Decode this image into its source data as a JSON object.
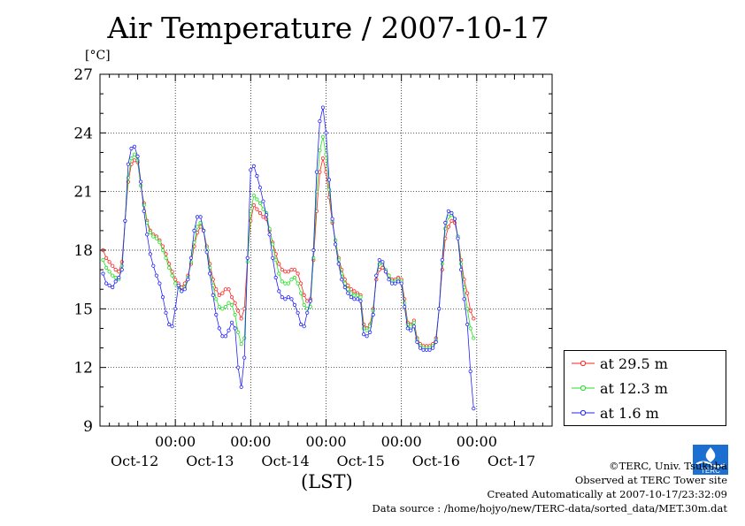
{
  "header": {
    "title": "Air Temperature / 2007-10-17",
    "unit": "[°C]"
  },
  "legend": {
    "items": [
      {
        "label": "at 29.5 m",
        "color": "#ff2020"
      },
      {
        "label": "at 12.3 m",
        "color": "#20e020"
      },
      {
        "label": "at 1.6 m",
        "color": "#2020ff"
      }
    ]
  },
  "credits": {
    "copyright": "©TERC, Univ. Tsukuba",
    "observed": "Observed at TERC Tower site",
    "created": "Created Automatically at 2007-10-17/23:32:09",
    "source": "Data source : /home/hojyo/new/TERC-data/sorted_data/MET.30m.dat"
  },
  "logo": {
    "text": "TERC"
  },
  "chart_data": {
    "type": "line",
    "title": "Air Temperature / 2007-10-17",
    "xlabel": "(LST)",
    "ylabel": "[°C]",
    "ylim": [
      9,
      27
    ],
    "yticks": [
      9,
      12,
      15,
      18,
      21,
      24,
      27
    ],
    "xlim": [
      0,
      144
    ],
    "xticks": [
      {
        "x": 24,
        "time": "00:00",
        "day": "Oct-12"
      },
      {
        "x": 48,
        "time": "00:00",
        "day": "Oct-13"
      },
      {
        "x": 72,
        "time": "00:00",
        "day": "Oct-14"
      },
      {
        "x": 96,
        "time": "00:00",
        "day": "Oct-15"
      },
      {
        "x": 120,
        "time": "00:00",
        "day": "Oct-16"
      },
      {
        "x": 144,
        "time": "",
        "day": "Oct-17"
      }
    ],
    "grid": true,
    "legend_position": "right",
    "x_unit": "hour",
    "x_step": 1,
    "series": [
      {
        "name": "at 29.5 m",
        "color": "#ff2020",
        "values": [
          18.0,
          17.6,
          17.4,
          17.2,
          17.0,
          16.9,
          17.4,
          19.5,
          21.5,
          22.4,
          22.6,
          22.5,
          21.3,
          20.4,
          19.5,
          19.0,
          18.8,
          18.7,
          18.5,
          18.2,
          17.8,
          17.3,
          16.9,
          16.5,
          16.3,
          16.1,
          16.3,
          16.7,
          17.3,
          18.2,
          18.9,
          19.2,
          19.0,
          18.2,
          17.3,
          16.5,
          16.0,
          15.7,
          15.8,
          16.0,
          16.0,
          15.6,
          15.3,
          14.9,
          14.5,
          15.0,
          17.6,
          19.5,
          20.3,
          20.1,
          19.9,
          19.7,
          19.6,
          19.0,
          18.4,
          17.8,
          17.3,
          17.0,
          16.9,
          16.9,
          17.0,
          17.0,
          16.8,
          16.3,
          15.7,
          15.4,
          15.5,
          17.5,
          20.0,
          22.0,
          22.7,
          22.0,
          20.7,
          19.4,
          18.5,
          17.6,
          17.0,
          16.5,
          16.2,
          16.0,
          15.9,
          15.8,
          15.7,
          14.2,
          14.0,
          14.2,
          15.0,
          16.5,
          17.0,
          17.1,
          16.9,
          16.7,
          16.5,
          16.5,
          16.6,
          16.5,
          15.5,
          14.3,
          14.2,
          14.4,
          13.5,
          13.2,
          13.1,
          13.1,
          13.1,
          13.2,
          13.5,
          15.0,
          17.0,
          18.6,
          19.2,
          19.5,
          19.4,
          18.7,
          17.5,
          16.5,
          15.8,
          14.9,
          14.5
        ]
      },
      {
        "name": "at 12.3 m",
        "color": "#20e020",
        "values": [
          17.5,
          17.1,
          16.9,
          16.7,
          16.6,
          16.5,
          17.2,
          19.5,
          21.7,
          22.7,
          22.9,
          22.6,
          21.3,
          20.3,
          19.4,
          18.9,
          18.7,
          18.6,
          18.4,
          18.0,
          17.6,
          17.1,
          16.7,
          16.3,
          16.1,
          15.9,
          16.1,
          16.6,
          17.4,
          18.4,
          19.2,
          19.4,
          19.0,
          18.1,
          17.1,
          16.2,
          15.5,
          15.1,
          15.0,
          15.1,
          15.3,
          15.2,
          14.7,
          13.8,
          13.2,
          13.5,
          17.4,
          20.0,
          20.8,
          20.6,
          20.4,
          20.1,
          19.9,
          19.1,
          18.3,
          17.5,
          16.8,
          16.4,
          16.3,
          16.3,
          16.5,
          16.6,
          16.3,
          15.8,
          15.2,
          15.0,
          15.1,
          17.6,
          21.0,
          23.1,
          23.8,
          22.9,
          21.1,
          19.5,
          18.5,
          17.5,
          16.8,
          16.3,
          16.0,
          15.8,
          15.7,
          15.7,
          15.6,
          14.0,
          13.9,
          14.1,
          14.9,
          16.7,
          17.3,
          17.3,
          17.0,
          16.7,
          16.4,
          16.4,
          16.5,
          16.4,
          15.3,
          14.2,
          14.1,
          14.3,
          13.4,
          13.1,
          13.0,
          13.0,
          13.0,
          13.1,
          13.4,
          15.0,
          17.3,
          19.1,
          19.7,
          19.8,
          19.6,
          18.7,
          17.3,
          16.1,
          15.0,
          14.0,
          13.5
        ]
      },
      {
        "name": "at 1.6 m",
        "color": "#2020ff",
        "values": [
          16.8,
          16.3,
          16.2,
          16.1,
          16.4,
          16.6,
          17.0,
          19.5,
          22.4,
          23.2,
          23.3,
          22.8,
          21.5,
          20.0,
          18.8,
          17.8,
          17.2,
          16.7,
          16.3,
          15.6,
          14.8,
          14.2,
          14.1,
          15.0,
          16.2,
          15.9,
          16.0,
          16.5,
          17.6,
          19.0,
          19.7,
          19.7,
          19.0,
          17.9,
          16.8,
          15.7,
          14.7,
          14.0,
          13.6,
          13.6,
          13.9,
          14.3,
          14.0,
          12.0,
          11.0,
          12.5,
          17.6,
          22.1,
          22.3,
          21.8,
          21.2,
          20.5,
          19.8,
          18.8,
          17.6,
          16.6,
          15.9,
          15.6,
          15.5,
          15.6,
          15.5,
          15.2,
          14.8,
          14.2,
          14.1,
          14.8,
          15.4,
          18.0,
          22.0,
          24.6,
          25.3,
          24.0,
          21.6,
          19.6,
          18.3,
          17.3,
          16.5,
          16.1,
          15.8,
          15.6,
          15.5,
          15.5,
          15.4,
          13.7,
          13.6,
          13.8,
          14.7,
          16.7,
          17.5,
          17.4,
          16.9,
          16.5,
          16.3,
          16.3,
          16.4,
          16.3,
          15.1,
          14.0,
          13.9,
          14.1,
          13.3,
          13.0,
          12.9,
          12.9,
          12.9,
          13.0,
          13.3,
          15.0,
          17.5,
          19.4,
          20.0,
          19.9,
          19.6,
          18.6,
          17.0,
          15.5,
          14.2,
          11.8,
          9.9
        ]
      }
    ]
  }
}
